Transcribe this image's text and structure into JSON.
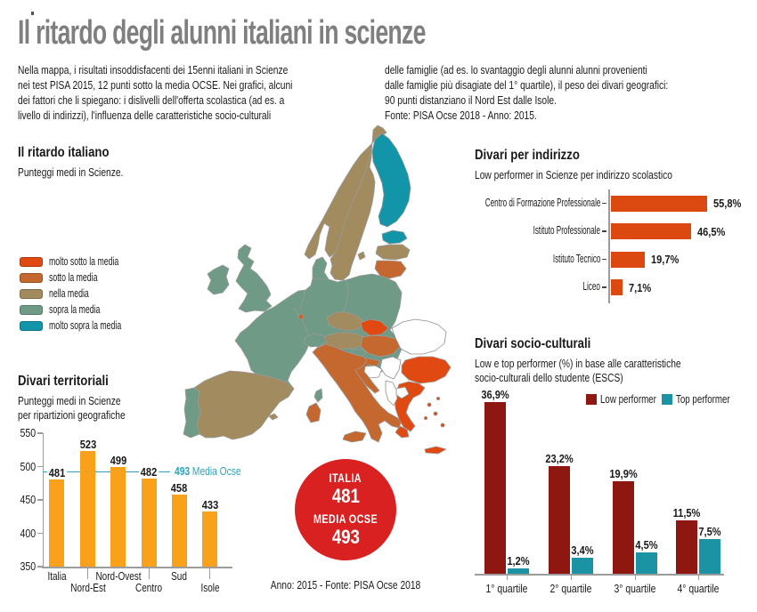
{
  "page": {
    "title": "Il ritardo degli alunni italiani in scienze",
    "intro_left": "Nella mappa, i risultati insoddisfacenti dei 15enni italiani in Scienze\nnei test PISA 2015, 12 punti sotto la media OCSE. Nei grafici, alcuni\ndei fattori che li spiegano: i dislivelli dell'offerta scolastica (ad es. a\nlivello di indirizzi), l'influenza delle caratteristiche socio-culturali",
    "intro_right": "delle famiglie (ad es. lo svantaggio degli alunni alunni provenienti\ndalle famiglie più disagiate del 1° quartile), il peso dei divari geografici:\n90 punti distanziano il Nord Est dalle Isole.\nFonte: PISA Ocse 2018 - Anno: 2015.",
    "footer": "Anno: 2015 - Fonte: PISA Ocse 2018"
  },
  "map": {
    "section_title": "Il ritardo italiano",
    "section_subtitle": "Punteggi medi in Scienze.",
    "legend": [
      {
        "label": "molto sotto la media",
        "color": "#E04A12"
      },
      {
        "label": "sotto la media",
        "color": "#C4682F"
      },
      {
        "label": "nella media",
        "color": "#A28B5E"
      },
      {
        "label": "sopra la media",
        "color": "#6F9A86"
      },
      {
        "label": "molto sopra la media",
        "color": "#1295A8"
      }
    ],
    "colors": {
      "very_low": "#E04A12",
      "low": "#C4682F",
      "average": "#A28B5E",
      "high": "#6F9A86",
      "very_high": "#1295A8",
      "no_data": "#FFFFFF",
      "border": "#9A9A9A"
    },
    "countries_by_category": {
      "very_low": [
        "Slovacchia",
        "Bulgaria",
        "Grecia"
      ],
      "low": [
        "Italia",
        "Ungheria",
        "Croazia",
        "Lituania",
        "Lussemburgo"
      ],
      "average": [
        "Norvegia",
        "Svezia",
        "Lettonia",
        "Spagna",
        "Rep. Ceca",
        "Austria"
      ],
      "high": [
        "Regno Unito",
        "Irlanda",
        "Portogallo",
        "Francia",
        "Belgio",
        "Paesi Bassi",
        "Germania",
        "Danimarca",
        "Polonia",
        "Svizzera",
        "Slovenia"
      ],
      "very_high": [
        "Finlandia",
        "Estonia"
      ],
      "no_data": [
        "Romania",
        "Serbia",
        "Bosnia",
        "Montenegro",
        "Albania",
        "Macedonia"
      ]
    }
  },
  "badge": {
    "line1": "ITALIA",
    "value1": "481",
    "line2": "MEDIA OCSE",
    "value2": "493",
    "color": "#D92121"
  },
  "chart_data": [
    {
      "id": "territoriali",
      "type": "bar",
      "title": "Divari territoriali",
      "subtitle": "Punteggi medi in Scienze\nper ripartizioni geografiche",
      "categories": [
        "Italia",
        "Nord-Est",
        "Nord-Ovest",
        "Centro",
        "Sud",
        "Isole"
      ],
      "values": [
        481,
        523,
        499,
        482,
        458,
        433
      ],
      "ylim": [
        350,
        550
      ],
      "yticks": [
        550,
        500,
        450,
        400,
        350
      ],
      "bar_color": "#F9A11B",
      "reference": {
        "value": 493,
        "label_bold": "493",
        "label": "Media Ocse",
        "color": "#2BA3BF"
      }
    },
    {
      "id": "indirizzo",
      "type": "bar",
      "orientation": "horizontal",
      "title": "Divari per indirizzo",
      "subtitle": "Low performer in Scienze per indirizzo scolastico",
      "categories": [
        "Centro di Formazione Professionale",
        "Istituto Professionale",
        "Istituto Tecnico",
        "Liceo"
      ],
      "values": [
        55.8,
        46.5,
        19.7,
        7.1
      ],
      "value_labels": [
        "55,8%",
        "46,5%",
        "19,7%",
        "7,1%"
      ],
      "bar_color": "#DB4911"
    },
    {
      "id": "socio",
      "type": "grouped-bar",
      "title": "Divari socio-culturali",
      "subtitle": "Low e top performer (%) in base alle caratteristiche\nsocio-culturali dello studente (ESCS)",
      "categories": [
        "1° quartile",
        "2° quartile",
        "3° quartile",
        "4° quartile"
      ],
      "series": [
        {
          "name": "Low performer",
          "color": "#8E1712",
          "values": [
            36.9,
            23.2,
            19.9,
            11.5
          ],
          "value_labels": [
            "36,9%",
            "23,2%",
            "19,9%",
            "11,5%"
          ]
        },
        {
          "name": "Top performer",
          "color": "#1B93A5",
          "values": [
            1.2,
            3.4,
            4.5,
            7.5
          ],
          "value_labels": [
            "1,2%",
            "3,4%",
            "4,5%",
            "7,5%"
          ]
        }
      ],
      "legend_position": "top-right",
      "ylim": [
        0,
        40
      ]
    }
  ]
}
